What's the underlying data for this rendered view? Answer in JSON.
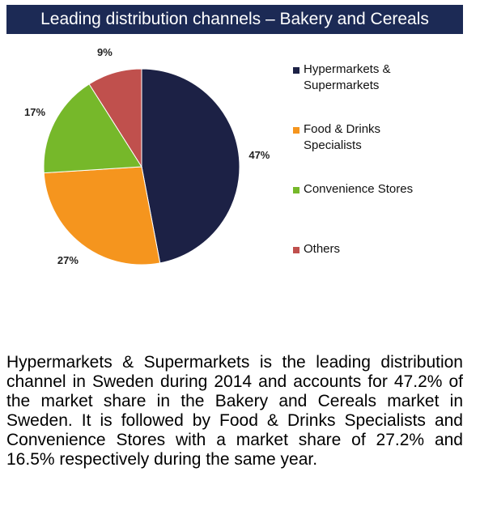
{
  "chart_data": {
    "type": "pie",
    "title": "Leading distribution channels – Bakery and Cereals",
    "categories": [
      "Hypermarkets & Supermarkets",
      "Food & Drinks Specialists",
      "Convenience Stores",
      "Others"
    ],
    "values": [
      47,
      27,
      17,
      9
    ],
    "value_labels": [
      "47%",
      "27%",
      "17%",
      "9%"
    ],
    "colors": [
      "#1c2145",
      "#f5951e",
      "#76b82a",
      "#c0504d"
    ],
    "legend_position": "right"
  },
  "summary": "Hypermarkets & Supermarkets is the leading distribution channel in Sweden during 2014 and accounts for 47.2% of the market share in the Bakery and Cereals market in Sweden. It is followed by Food & Drinks Specialists and Convenience Stores with a market share of 27.2% and 16.5% respectively during the same year."
}
